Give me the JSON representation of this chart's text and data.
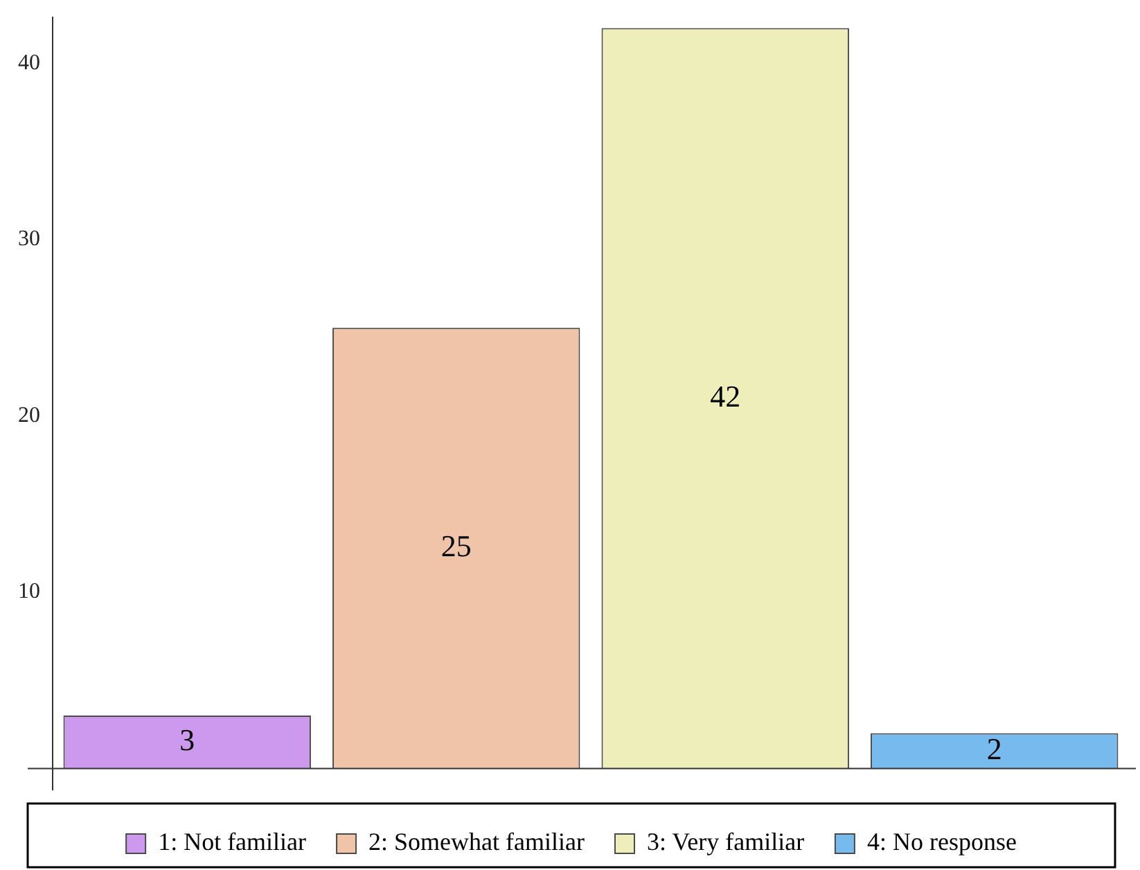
{
  "chart_data": {
    "type": "bar",
    "categories": [
      null,
      null,
      null,
      null
    ],
    "series": [
      {
        "name": "1: Not familiar",
        "color": "#cc99ee",
        "values": [
          3,
          null,
          null,
          null
        ]
      },
      {
        "name": "2: Somewhat familiar",
        "color": "#f0c4a8",
        "values": [
          null,
          25,
          null,
          null
        ]
      },
      {
        "name": "3: Very familiar",
        "color": "#eeeebb",
        "values": [
          null,
          null,
          42,
          null
        ]
      },
      {
        "name": "4: No response",
        "color": "#77bbee",
        "values": [
          null,
          null,
          null,
          2
        ]
      }
    ],
    "ylim": [
      -1.2,
      42.6
    ],
    "yticks": [
      10,
      20,
      30,
      40
    ],
    "tick_labels": "y",
    "data_labels": true,
    "legend": "bottom",
    "grid": false
  }
}
